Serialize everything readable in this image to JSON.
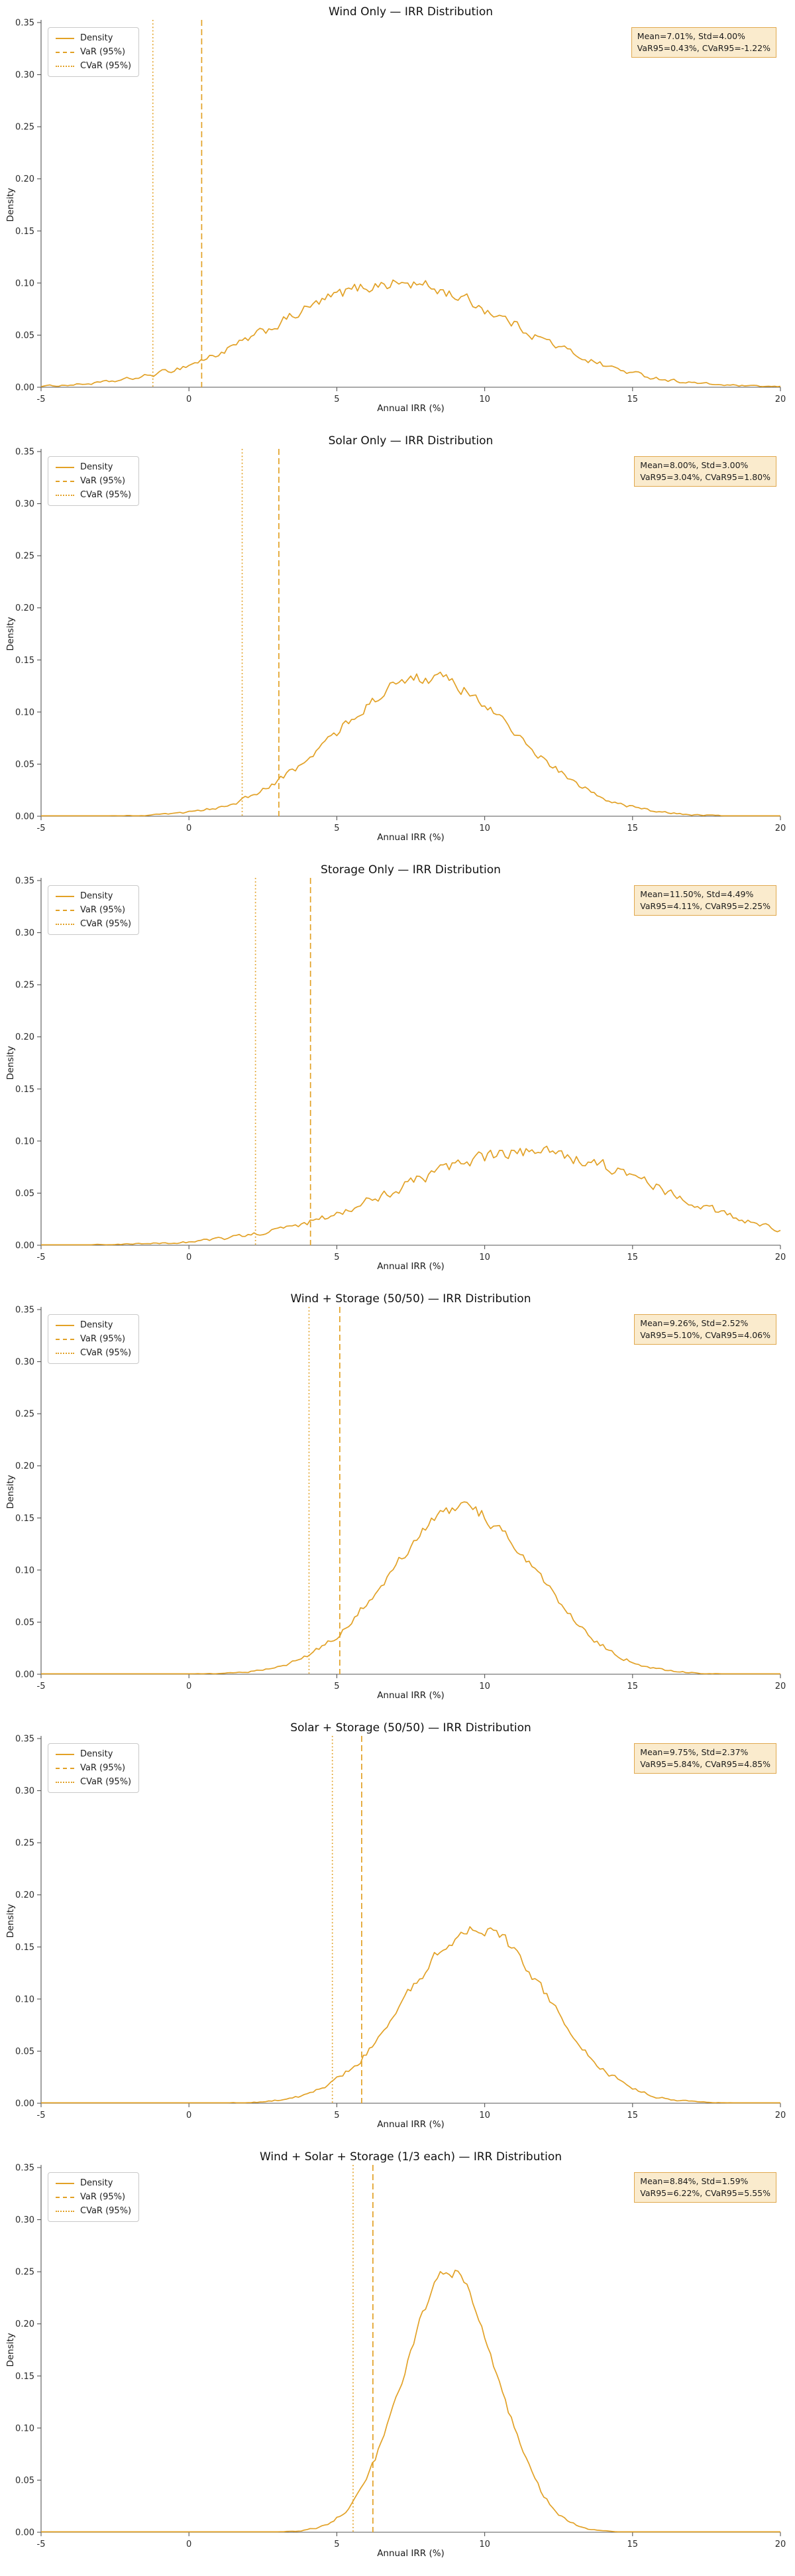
{
  "legend": {
    "density": "Density",
    "var": "VaR (95%)",
    "cvar": "CVaR (95%)"
  },
  "axes": {
    "xlabel": "Annual IRR (%)",
    "ylabel": "Density",
    "xticks": [
      -5,
      0,
      5,
      10,
      15,
      20
    ],
    "yticks": [
      0.0,
      0.05,
      0.1,
      0.15,
      0.2,
      0.25,
      0.3,
      0.35
    ]
  },
  "colors": {
    "line": "#E2A126",
    "annotation_bg": "#FAEBCD",
    "annotation_border": "#E0A84E"
  },
  "chart_data": [
    {
      "type": "line",
      "subtype": "density",
      "distribution": "normal",
      "title": "Wind Only — IRR Distribution",
      "mean": 7.01,
      "std": 4.0,
      "var95": 0.43,
      "cvar95": -1.22,
      "peak_density": 0.105,
      "xlim": [
        -5,
        20
      ],
      "ylim": [
        0,
        0.35
      ],
      "annotation_line1": "Mean=7.01%, Std=4.00%",
      "annotation_line2": "VaR95=0.43%, CVaR95=-1.22%"
    },
    {
      "type": "line",
      "subtype": "density",
      "distribution": "normal",
      "title": "Solar Only — IRR Distribution",
      "mean": 8.0,
      "std": 3.0,
      "var95": 3.04,
      "cvar95": 1.8,
      "peak_density": 0.135,
      "xlim": [
        -5,
        20
      ],
      "ylim": [
        0,
        0.35
      ],
      "annotation_line1": "Mean=8.00%, Std=3.00%",
      "annotation_line2": "VaR95=3.04%, CVaR95=1.80%"
    },
    {
      "type": "line",
      "subtype": "density",
      "distribution": "normal",
      "title": "Storage Only — IRR Distribution",
      "mean": 11.5,
      "std": 4.49,
      "var95": 4.11,
      "cvar95": 2.25,
      "peak_density": 0.092,
      "xlim": [
        -5,
        20
      ],
      "ylim": [
        0,
        0.35
      ],
      "annotation_line1": "Mean=11.50%, Std=4.49%",
      "annotation_line2": "VaR95=4.11%, CVaR95=2.25%"
    },
    {
      "type": "line",
      "subtype": "density",
      "distribution": "normal",
      "title": "Wind + Storage (50/50) — IRR Distribution",
      "mean": 9.26,
      "std": 2.52,
      "var95": 5.1,
      "cvar95": 4.06,
      "peak_density": 0.16,
      "xlim": [
        -5,
        20
      ],
      "ylim": [
        0,
        0.35
      ],
      "annotation_line1": "Mean=9.26%, Std=2.52%",
      "annotation_line2": "VaR95=5.10%, CVaR95=4.06%"
    },
    {
      "type": "line",
      "subtype": "density",
      "distribution": "normal",
      "title": "Solar + Storage (50/50) — IRR Distribution",
      "mean": 9.75,
      "std": 2.37,
      "var95": 5.84,
      "cvar95": 4.85,
      "peak_density": 0.17,
      "xlim": [
        -5,
        20
      ],
      "ylim": [
        0,
        0.35
      ],
      "annotation_line1": "Mean=9.75%, Std=2.37%",
      "annotation_line2": "VaR95=5.84%, CVaR95=4.85%"
    },
    {
      "type": "line",
      "subtype": "density",
      "distribution": "normal",
      "title": "Wind + Solar + Storage (1/3 each) — IRR Distribution",
      "mean": 8.84,
      "std": 1.59,
      "var95": 6.22,
      "cvar95": 5.55,
      "peak_density": 0.255,
      "xlim": [
        -5,
        20
      ],
      "ylim": [
        0,
        0.35
      ],
      "annotation_line1": "Mean=8.84%, Std=1.59%",
      "annotation_line2": "VaR95=6.22%, CVaR95=5.55%"
    }
  ]
}
